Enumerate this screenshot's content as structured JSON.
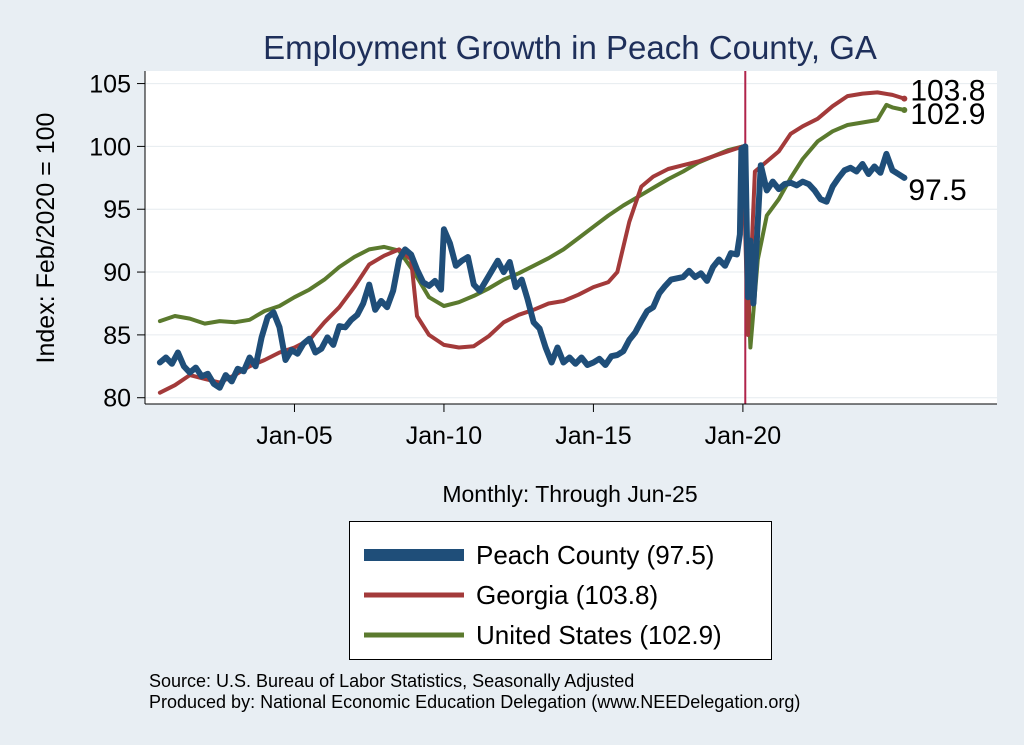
{
  "chart_data": {
    "type": "line",
    "title": "Employment Growth in Peach  County, GA",
    "xlabel": "Monthly: Through Jun-25",
    "ylabel": "Index: Feb/2020 = 100",
    "ylim": [
      79.5,
      106
    ],
    "xlim": [
      2000.0,
      2028.5
    ],
    "yticks": [
      80,
      85,
      90,
      95,
      100,
      105
    ],
    "xticks": [
      {
        "value": 2005.0,
        "label": "Jan-05"
      },
      {
        "value": 2010.0,
        "label": "Jan-10"
      },
      {
        "value": 2015.0,
        "label": "Jan-15"
      },
      {
        "value": 2020.0,
        "label": "Jan-20"
      }
    ],
    "reference_line": {
      "x": 2020.08,
      "color": "#b0244a"
    },
    "series": [
      {
        "name": "Peach  County",
        "legend_label": "Peach  County (97.5)",
        "end_label": "97.5",
        "color": "#1f4e79",
        "width": 6,
        "points": [
          [
            2000.5,
            82.8
          ],
          [
            2000.7,
            83.2
          ],
          [
            2000.9,
            82.7
          ],
          [
            2001.1,
            83.6
          ],
          [
            2001.3,
            82.5
          ],
          [
            2001.5,
            82.0
          ],
          [
            2001.7,
            82.4
          ],
          [
            2001.9,
            81.7
          ],
          [
            2002.1,
            81.9
          ],
          [
            2002.3,
            81.1
          ],
          [
            2002.5,
            80.8
          ],
          [
            2002.7,
            81.8
          ],
          [
            2002.9,
            81.3
          ],
          [
            2003.1,
            82.3
          ],
          [
            2003.3,
            82.1
          ],
          [
            2003.5,
            83.2
          ],
          [
            2003.7,
            82.5
          ],
          [
            2003.9,
            84.8
          ],
          [
            2004.1,
            86.4
          ],
          [
            2004.3,
            86.8
          ],
          [
            2004.5,
            85.6
          ],
          [
            2004.7,
            83.0
          ],
          [
            2004.9,
            83.8
          ],
          [
            2005.1,
            83.5
          ],
          [
            2005.3,
            84.3
          ],
          [
            2005.5,
            84.7
          ],
          [
            2005.7,
            83.6
          ],
          [
            2005.9,
            83.9
          ],
          [
            2006.1,
            84.8
          ],
          [
            2006.3,
            84.2
          ],
          [
            2006.5,
            85.7
          ],
          [
            2006.7,
            85.6
          ],
          [
            2006.9,
            86.2
          ],
          [
            2007.1,
            86.6
          ],
          [
            2007.3,
            87.5
          ],
          [
            2007.5,
            89.0
          ],
          [
            2007.7,
            87.0
          ],
          [
            2007.9,
            87.7
          ],
          [
            2008.1,
            87.2
          ],
          [
            2008.3,
            88.5
          ],
          [
            2008.5,
            91.0
          ],
          [
            2008.7,
            91.8
          ],
          [
            2008.9,
            91.4
          ],
          [
            2009.1,
            90.2
          ],
          [
            2009.3,
            89.2
          ],
          [
            2009.5,
            88.9
          ],
          [
            2009.7,
            89.3
          ],
          [
            2009.9,
            88.6
          ],
          [
            2010.0,
            93.4
          ],
          [
            2010.2,
            92.3
          ],
          [
            2010.4,
            90.5
          ],
          [
            2010.6,
            90.9
          ],
          [
            2010.8,
            91.2
          ],
          [
            2011.0,
            89.0
          ],
          [
            2011.2,
            88.5
          ],
          [
            2011.4,
            89.3
          ],
          [
            2011.6,
            90.1
          ],
          [
            2011.8,
            90.9
          ],
          [
            2012.0,
            90.0
          ],
          [
            2012.2,
            90.8
          ],
          [
            2012.4,
            88.8
          ],
          [
            2012.6,
            89.4
          ],
          [
            2012.8,
            87.8
          ],
          [
            2013.0,
            86.0
          ],
          [
            2013.2,
            85.5
          ],
          [
            2013.4,
            84.0
          ],
          [
            2013.6,
            82.8
          ],
          [
            2013.8,
            84.0
          ],
          [
            2014.0,
            82.8
          ],
          [
            2014.2,
            83.2
          ],
          [
            2014.4,
            82.7
          ],
          [
            2014.6,
            83.2
          ],
          [
            2014.8,
            82.6
          ],
          [
            2015.0,
            82.8
          ],
          [
            2015.2,
            83.1
          ],
          [
            2015.4,
            82.6
          ],
          [
            2015.6,
            83.3
          ],
          [
            2015.8,
            83.4
          ],
          [
            2016.0,
            83.7
          ],
          [
            2016.2,
            84.6
          ],
          [
            2016.4,
            85.2
          ],
          [
            2016.6,
            86.1
          ],
          [
            2016.8,
            86.9
          ],
          [
            2017.0,
            87.2
          ],
          [
            2017.2,
            88.3
          ],
          [
            2017.4,
            88.9
          ],
          [
            2017.6,
            89.4
          ],
          [
            2017.8,
            89.5
          ],
          [
            2018.0,
            89.6
          ],
          [
            2018.2,
            90.1
          ],
          [
            2018.4,
            89.6
          ],
          [
            2018.6,
            89.9
          ],
          [
            2018.8,
            89.3
          ],
          [
            2019.0,
            90.4
          ],
          [
            2019.2,
            91.0
          ],
          [
            2019.4,
            90.5
          ],
          [
            2019.6,
            91.5
          ],
          [
            2019.8,
            91.4
          ],
          [
            2019.9,
            93.0
          ],
          [
            2019.95,
            99.8
          ],
          [
            2020.08,
            100.0
          ],
          [
            2020.17,
            88.0
          ],
          [
            2020.25,
            92.5
          ],
          [
            2020.35,
            87.5
          ],
          [
            2020.5,
            94.0
          ],
          [
            2020.6,
            98.5
          ],
          [
            2020.8,
            96.5
          ],
          [
            2021.0,
            97.2
          ],
          [
            2021.2,
            96.6
          ],
          [
            2021.4,
            97.0
          ],
          [
            2021.6,
            97.1
          ],
          [
            2021.8,
            96.9
          ],
          [
            2022.0,
            97.2
          ],
          [
            2022.2,
            97.0
          ],
          [
            2022.4,
            96.5
          ],
          [
            2022.6,
            95.8
          ],
          [
            2022.8,
            95.6
          ],
          [
            2023.0,
            96.8
          ],
          [
            2023.2,
            97.5
          ],
          [
            2023.4,
            98.1
          ],
          [
            2023.6,
            98.3
          ],
          [
            2023.8,
            98.0
          ],
          [
            2024.0,
            98.6
          ],
          [
            2024.2,
            97.8
          ],
          [
            2024.4,
            98.4
          ],
          [
            2024.6,
            97.9
          ],
          [
            2024.8,
            99.4
          ],
          [
            2025.0,
            98.1
          ],
          [
            2025.2,
            97.8
          ],
          [
            2025.4,
            97.5
          ]
        ]
      },
      {
        "name": "Georgia",
        "legend_label": "Georgia (103.8)",
        "end_label": "103.8",
        "color": "#a33a3a",
        "width": 4,
        "points": [
          [
            2000.5,
            80.4
          ],
          [
            2001.0,
            81.0
          ],
          [
            2001.5,
            81.8
          ],
          [
            2002.0,
            81.5
          ],
          [
            2002.5,
            81.2
          ],
          [
            2003.0,
            81.8
          ],
          [
            2003.5,
            82.5
          ],
          [
            2004.0,
            83.0
          ],
          [
            2004.5,
            83.6
          ],
          [
            2005.0,
            84.0
          ],
          [
            2005.5,
            84.6
          ],
          [
            2006.0,
            86.0
          ],
          [
            2006.5,
            87.2
          ],
          [
            2007.0,
            88.8
          ],
          [
            2007.5,
            90.6
          ],
          [
            2008.0,
            91.3
          ],
          [
            2008.5,
            91.8
          ],
          [
            2008.9,
            91.0
          ],
          [
            2009.1,
            86.5
          ],
          [
            2009.5,
            85.0
          ],
          [
            2010.0,
            84.2
          ],
          [
            2010.5,
            84.0
          ],
          [
            2011.0,
            84.1
          ],
          [
            2011.5,
            84.9
          ],
          [
            2012.0,
            86.0
          ],
          [
            2012.5,
            86.6
          ],
          [
            2013.0,
            87.0
          ],
          [
            2013.5,
            87.5
          ],
          [
            2014.0,
            87.7
          ],
          [
            2014.5,
            88.2
          ],
          [
            2015.0,
            88.8
          ],
          [
            2015.5,
            89.2
          ],
          [
            2015.8,
            90.0
          ],
          [
            2016.2,
            94.0
          ],
          [
            2016.6,
            96.8
          ],
          [
            2017.0,
            97.6
          ],
          [
            2017.5,
            98.2
          ],
          [
            2018.0,
            98.5
          ],
          [
            2018.5,
            98.8
          ],
          [
            2019.0,
            99.2
          ],
          [
            2019.5,
            99.6
          ],
          [
            2020.0,
            100.0
          ],
          [
            2020.17,
            85.0
          ],
          [
            2020.4,
            98.0
          ],
          [
            2020.8,
            98.8
          ],
          [
            2021.2,
            99.6
          ],
          [
            2021.6,
            101.0
          ],
          [
            2022.0,
            101.6
          ],
          [
            2022.5,
            102.2
          ],
          [
            2023.0,
            103.2
          ],
          [
            2023.5,
            104.0
          ],
          [
            2024.0,
            104.2
          ],
          [
            2024.5,
            104.3
          ],
          [
            2025.0,
            104.1
          ],
          [
            2025.4,
            103.8
          ]
        ]
      },
      {
        "name": "United States",
        "legend_label": "United States (102.9)",
        "end_label": "102.9",
        "color": "#5b7a2e",
        "width": 4,
        "points": [
          [
            2000.5,
            86.1
          ],
          [
            2001.0,
            86.5
          ],
          [
            2001.5,
            86.3
          ],
          [
            2002.0,
            85.9
          ],
          [
            2002.5,
            86.1
          ],
          [
            2003.0,
            86.0
          ],
          [
            2003.5,
            86.2
          ],
          [
            2004.0,
            86.9
          ],
          [
            2004.5,
            87.3
          ],
          [
            2005.0,
            88.0
          ],
          [
            2005.5,
            88.6
          ],
          [
            2006.0,
            89.4
          ],
          [
            2006.5,
            90.4
          ],
          [
            2007.0,
            91.2
          ],
          [
            2007.5,
            91.8
          ],
          [
            2008.0,
            92.0
          ],
          [
            2008.5,
            91.7
          ],
          [
            2009.0,
            90.0
          ],
          [
            2009.5,
            88.0
          ],
          [
            2010.0,
            87.3
          ],
          [
            2010.5,
            87.6
          ],
          [
            2011.0,
            88.1
          ],
          [
            2011.5,
            88.7
          ],
          [
            2012.0,
            89.4
          ],
          [
            2012.5,
            89.9
          ],
          [
            2013.0,
            90.5
          ],
          [
            2013.5,
            91.1
          ],
          [
            2014.0,
            91.8
          ],
          [
            2014.5,
            92.7
          ],
          [
            2015.0,
            93.6
          ],
          [
            2015.5,
            94.5
          ],
          [
            2016.0,
            95.3
          ],
          [
            2016.5,
            96.0
          ],
          [
            2017.0,
            96.7
          ],
          [
            2017.5,
            97.4
          ],
          [
            2018.0,
            98.0
          ],
          [
            2018.5,
            98.7
          ],
          [
            2019.0,
            99.2
          ],
          [
            2019.5,
            99.7
          ],
          [
            2020.0,
            100.0
          ],
          [
            2020.25,
            84.0
          ],
          [
            2020.5,
            91.0
          ],
          [
            2020.8,
            94.5
          ],
          [
            2021.2,
            95.8
          ],
          [
            2021.6,
            97.5
          ],
          [
            2022.0,
            99.0
          ],
          [
            2022.5,
            100.4
          ],
          [
            2023.0,
            101.2
          ],
          [
            2023.5,
            101.7
          ],
          [
            2024.0,
            101.9
          ],
          [
            2024.5,
            102.1
          ],
          [
            2024.8,
            103.3
          ],
          [
            2025.0,
            103.1
          ],
          [
            2025.4,
            102.9
          ]
        ]
      }
    ]
  },
  "source_line": "Source: U.S. Bureau of Labor Statistics, Seasonally Adjusted",
  "produced_line": "Produced by: National Economic Education Delegation (www.NEEDelegation.org)"
}
